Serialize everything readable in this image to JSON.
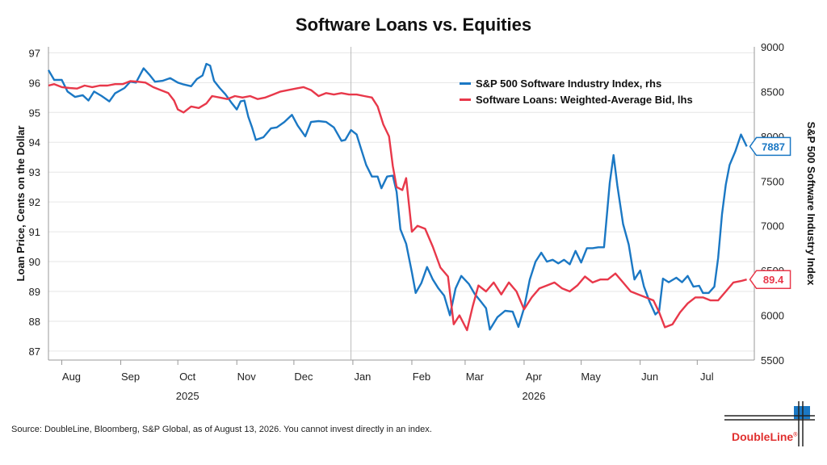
{
  "chart_data": {
    "type": "line",
    "title": "Software Loans vs. Equities",
    "ylabel_left": "Loan Price, Cents on the Dollar",
    "ylabel_right": "S&P 500 Software Industry Index",
    "ylim_left": [
      86.7,
      97.2
    ],
    "ylim_right": [
      5500,
      9000
    ],
    "yticks_left": [
      87,
      88,
      89,
      90,
      91,
      92,
      93,
      94,
      95,
      96,
      97
    ],
    "yticks_right": [
      5500,
      6000,
      6500,
      7000,
      7500,
      8000,
      8500,
      9000
    ],
    "xlim": [
      "2025-07-25",
      "2026-07-31"
    ],
    "xticks": [
      {
        "date": "2025-08-01",
        "label": "Aug"
      },
      {
        "date": "2025-09-01",
        "label": "Sep"
      },
      {
        "date": "2025-10-01",
        "label": "Oct"
      },
      {
        "date": "2025-11-01",
        "label": "Nov"
      },
      {
        "date": "2025-12-01",
        "label": "Dec"
      },
      {
        "date": "2026-01-01",
        "label": "Jan"
      },
      {
        "date": "2026-02-01",
        "label": "Feb"
      },
      {
        "date": "2026-03-01",
        "label": "Mar"
      },
      {
        "date": "2026-04-01",
        "label": "Apr"
      },
      {
        "date": "2026-05-01",
        "label": "May"
      },
      {
        "date": "2026-06-01",
        "label": "Jun"
      },
      {
        "date": "2026-07-01",
        "label": "Jul"
      }
    ],
    "year_labels": [
      {
        "date": "2025-10-01",
        "label": "2025"
      },
      {
        "date": "2026-04-01",
        "label": "2026"
      }
    ],
    "year_divider": "2025-12-31",
    "grid": "horizontal",
    "legend_position": "top-right",
    "series": [
      {
        "name": "S&P 500 Software Industry Index, rhs",
        "axis": "right",
        "color": "#1b78c4",
        "end_label": "7887",
        "points": [
          [
            "2025-07-25",
            8740
          ],
          [
            "2025-07-28",
            8630
          ],
          [
            "2025-08-01",
            8630
          ],
          [
            "2025-08-04",
            8500
          ],
          [
            "2025-08-08",
            8440
          ],
          [
            "2025-08-12",
            8460
          ],
          [
            "2025-08-15",
            8400
          ],
          [
            "2025-08-18",
            8500
          ],
          [
            "2025-08-22",
            8450
          ],
          [
            "2025-08-26",
            8390
          ],
          [
            "2025-08-29",
            8480
          ],
          [
            "2025-09-03",
            8540
          ],
          [
            "2025-09-06",
            8610
          ],
          [
            "2025-09-09",
            8600
          ],
          [
            "2025-09-13",
            8760
          ],
          [
            "2025-09-16",
            8690
          ],
          [
            "2025-09-19",
            8610
          ],
          [
            "2025-09-23",
            8620
          ],
          [
            "2025-09-27",
            8650
          ],
          [
            "2025-10-01",
            8600
          ],
          [
            "2025-10-04",
            8580
          ],
          [
            "2025-10-08",
            8560
          ],
          [
            "2025-10-11",
            8640
          ],
          [
            "2025-10-14",
            8680
          ],
          [
            "2025-10-16",
            8810
          ],
          [
            "2025-10-18",
            8790
          ],
          [
            "2025-10-20",
            8620
          ],
          [
            "2025-10-23",
            8540
          ],
          [
            "2025-10-26",
            8470
          ],
          [
            "2025-10-29",
            8380
          ],
          [
            "2025-11-01",
            8300
          ],
          [
            "2025-11-03",
            8390
          ],
          [
            "2025-11-05",
            8400
          ],
          [
            "2025-11-07",
            8220
          ],
          [
            "2025-11-09",
            8100
          ],
          [
            "2025-11-11",
            7960
          ],
          [
            "2025-11-15",
            7990
          ],
          [
            "2025-11-19",
            8090
          ],
          [
            "2025-11-22",
            8100
          ],
          [
            "2025-11-26",
            8160
          ],
          [
            "2025-11-30",
            8240
          ],
          [
            "2025-12-03",
            8120
          ],
          [
            "2025-12-07",
            8000
          ],
          [
            "2025-12-10",
            8160
          ],
          [
            "2025-12-14",
            8170
          ],
          [
            "2025-12-18",
            8160
          ],
          [
            "2025-12-22",
            8100
          ],
          [
            "2025-12-26",
            7950
          ],
          [
            "2025-12-28",
            7960
          ],
          [
            "2025-12-31",
            8070
          ],
          [
            "2026-01-03",
            8020
          ],
          [
            "2026-01-05",
            7880
          ],
          [
            "2026-01-08",
            7680
          ],
          [
            "2026-01-11",
            7550
          ],
          [
            "2026-01-14",
            7550
          ],
          [
            "2026-01-16",
            7420
          ],
          [
            "2026-01-19",
            7550
          ],
          [
            "2026-01-22",
            7560
          ],
          [
            "2026-01-24",
            7380
          ],
          [
            "2026-01-26",
            6960
          ],
          [
            "2026-01-29",
            6800
          ],
          [
            "2026-02-01",
            6480
          ],
          [
            "2026-02-03",
            6250
          ],
          [
            "2026-02-06",
            6360
          ],
          [
            "2026-02-09",
            6540
          ],
          [
            "2026-02-12",
            6400
          ],
          [
            "2026-02-15",
            6300
          ],
          [
            "2026-02-18",
            6220
          ],
          [
            "2026-02-21",
            6000
          ],
          [
            "2026-02-24",
            6300
          ],
          [
            "2026-02-27",
            6440
          ],
          [
            "2026-03-03",
            6350
          ],
          [
            "2026-03-06",
            6240
          ],
          [
            "2026-03-09",
            6160
          ],
          [
            "2026-03-12",
            6080
          ],
          [
            "2026-03-14",
            5840
          ],
          [
            "2026-03-18",
            5980
          ],
          [
            "2026-03-22",
            6050
          ],
          [
            "2026-03-26",
            6040
          ],
          [
            "2026-03-29",
            5870
          ],
          [
            "2026-04-01",
            6080
          ],
          [
            "2026-04-04",
            6400
          ],
          [
            "2026-04-07",
            6600
          ],
          [
            "2026-04-10",
            6700
          ],
          [
            "2026-04-13",
            6600
          ],
          [
            "2026-04-16",
            6620
          ],
          [
            "2026-04-19",
            6580
          ],
          [
            "2026-04-22",
            6620
          ],
          [
            "2026-04-25",
            6570
          ],
          [
            "2026-04-28",
            6720
          ],
          [
            "2026-05-01",
            6590
          ],
          [
            "2026-05-04",
            6750
          ],
          [
            "2026-05-07",
            6750
          ],
          [
            "2026-05-10",
            6760
          ],
          [
            "2026-05-13",
            6760
          ],
          [
            "2026-05-16",
            7480
          ],
          [
            "2026-05-18",
            7790
          ],
          [
            "2026-05-20",
            7450
          ],
          [
            "2026-05-23",
            7020
          ],
          [
            "2026-05-26",
            6790
          ],
          [
            "2026-05-29",
            6400
          ],
          [
            "2026-06-01",
            6500
          ],
          [
            "2026-06-03",
            6320
          ],
          [
            "2026-06-06",
            6150
          ],
          [
            "2026-06-09",
            6010
          ],
          [
            "2026-06-11",
            6050
          ],
          [
            "2026-06-13",
            6410
          ],
          [
            "2026-06-16",
            6370
          ],
          [
            "2026-06-20",
            6420
          ],
          [
            "2026-06-23",
            6370
          ],
          [
            "2026-06-26",
            6440
          ],
          [
            "2026-06-29",
            6320
          ],
          [
            "2026-07-02",
            6330
          ],
          [
            "2026-07-04",
            6250
          ],
          [
            "2026-07-07",
            6250
          ],
          [
            "2026-07-10",
            6320
          ],
          [
            "2026-07-12",
            6640
          ],
          [
            "2026-07-14",
            7130
          ],
          [
            "2026-07-16",
            7460
          ],
          [
            "2026-07-18",
            7680
          ],
          [
            "2026-07-21",
            7830
          ],
          [
            "2026-07-24",
            8020
          ],
          [
            "2026-07-27",
            7887
          ]
        ]
      },
      {
        "name": "Software Loans: Weighted-Average Bid, lhs",
        "axis": "left",
        "color": "#e8384a",
        "end_label": "89.4",
        "points": [
          [
            "2025-07-25",
            95.9
          ],
          [
            "2025-07-28",
            95.95
          ],
          [
            "2025-08-01",
            95.85
          ],
          [
            "2025-08-05",
            95.82
          ],
          [
            "2025-08-09",
            95.8
          ],
          [
            "2025-08-13",
            95.9
          ],
          [
            "2025-08-17",
            95.85
          ],
          [
            "2025-08-21",
            95.9
          ],
          [
            "2025-08-25",
            95.9
          ],
          [
            "2025-08-29",
            95.95
          ],
          [
            "2025-09-02",
            95.95
          ],
          [
            "2025-09-06",
            96.05
          ],
          [
            "2025-09-10",
            96.03
          ],
          [
            "2025-09-14",
            96.0
          ],
          [
            "2025-09-18",
            95.85
          ],
          [
            "2025-09-22",
            95.75
          ],
          [
            "2025-09-26",
            95.65
          ],
          [
            "2025-09-29",
            95.4
          ],
          [
            "2025-10-01",
            95.1
          ],
          [
            "2025-10-04",
            95.0
          ],
          [
            "2025-10-08",
            95.2
          ],
          [
            "2025-10-12",
            95.15
          ],
          [
            "2025-10-16",
            95.3
          ],
          [
            "2025-10-19",
            95.55
          ],
          [
            "2025-10-23",
            95.5
          ],
          [
            "2025-10-27",
            95.45
          ],
          [
            "2025-10-31",
            95.55
          ],
          [
            "2025-11-04",
            95.5
          ],
          [
            "2025-11-08",
            95.55
          ],
          [
            "2025-11-12",
            95.45
          ],
          [
            "2025-11-16",
            95.5
          ],
          [
            "2025-11-20",
            95.6
          ],
          [
            "2025-11-24",
            95.7
          ],
          [
            "2025-11-28",
            95.75
          ],
          [
            "2025-12-02",
            95.8
          ],
          [
            "2025-12-06",
            95.85
          ],
          [
            "2025-12-10",
            95.75
          ],
          [
            "2025-12-14",
            95.55
          ],
          [
            "2025-12-18",
            95.65
          ],
          [
            "2025-12-22",
            95.6
          ],
          [
            "2025-12-26",
            95.65
          ],
          [
            "2025-12-30",
            95.6
          ],
          [
            "2026-01-03",
            95.6
          ],
          [
            "2026-01-07",
            95.55
          ],
          [
            "2026-01-11",
            95.5
          ],
          [
            "2026-01-14",
            95.2
          ],
          [
            "2026-01-17",
            94.6
          ],
          [
            "2026-01-20",
            94.2
          ],
          [
            "2026-01-22",
            93.2
          ],
          [
            "2026-01-24",
            92.5
          ],
          [
            "2026-01-27",
            92.4
          ],
          [
            "2026-01-29",
            92.8
          ],
          [
            "2026-02-01",
            91.0
          ],
          [
            "2026-02-04",
            91.2
          ],
          [
            "2026-02-08",
            91.1
          ],
          [
            "2026-02-12",
            90.5
          ],
          [
            "2026-02-16",
            89.8
          ],
          [
            "2026-02-20",
            89.5
          ],
          [
            "2026-02-23",
            87.9
          ],
          [
            "2026-02-26",
            88.2
          ],
          [
            "2026-03-02",
            87.7
          ],
          [
            "2026-03-05",
            88.5
          ],
          [
            "2026-03-08",
            89.2
          ],
          [
            "2026-03-12",
            89.0
          ],
          [
            "2026-03-16",
            89.3
          ],
          [
            "2026-03-20",
            88.9
          ],
          [
            "2026-03-24",
            89.3
          ],
          [
            "2026-03-28",
            89.0
          ],
          [
            "2026-04-01",
            88.4
          ],
          [
            "2026-04-05",
            88.8
          ],
          [
            "2026-04-09",
            89.1
          ],
          [
            "2026-04-13",
            89.2
          ],
          [
            "2026-04-17",
            89.3
          ],
          [
            "2026-04-21",
            89.1
          ],
          [
            "2026-04-25",
            89.0
          ],
          [
            "2026-04-29",
            89.2
          ],
          [
            "2026-05-03",
            89.5
          ],
          [
            "2026-05-07",
            89.3
          ],
          [
            "2026-05-11",
            89.4
          ],
          [
            "2026-05-15",
            89.4
          ],
          [
            "2026-05-19",
            89.6
          ],
          [
            "2026-05-23",
            89.3
          ],
          [
            "2026-05-27",
            89.0
          ],
          [
            "2026-05-31",
            88.9
          ],
          [
            "2026-06-04",
            88.8
          ],
          [
            "2026-06-08",
            88.7
          ],
          [
            "2026-06-11",
            88.3
          ],
          [
            "2026-06-14",
            87.8
          ],
          [
            "2026-06-18",
            87.9
          ],
          [
            "2026-06-22",
            88.3
          ],
          [
            "2026-06-26",
            88.6
          ],
          [
            "2026-06-30",
            88.8
          ],
          [
            "2026-07-04",
            88.8
          ],
          [
            "2026-07-08",
            88.7
          ],
          [
            "2026-07-12",
            88.7
          ],
          [
            "2026-07-16",
            89.0
          ],
          [
            "2026-07-20",
            89.3
          ],
          [
            "2026-07-24",
            89.35
          ],
          [
            "2026-07-27",
            89.4
          ]
        ]
      }
    ]
  },
  "source_text": "Source: DoubleLine, Bloomberg, S&P Global, as of August 13, 2026. You cannot invest directly in an index.",
  "logo": {
    "text": "DoubleLine",
    "mark": "®",
    "color": "#e0302f",
    "accent": "#1b78c4"
  }
}
